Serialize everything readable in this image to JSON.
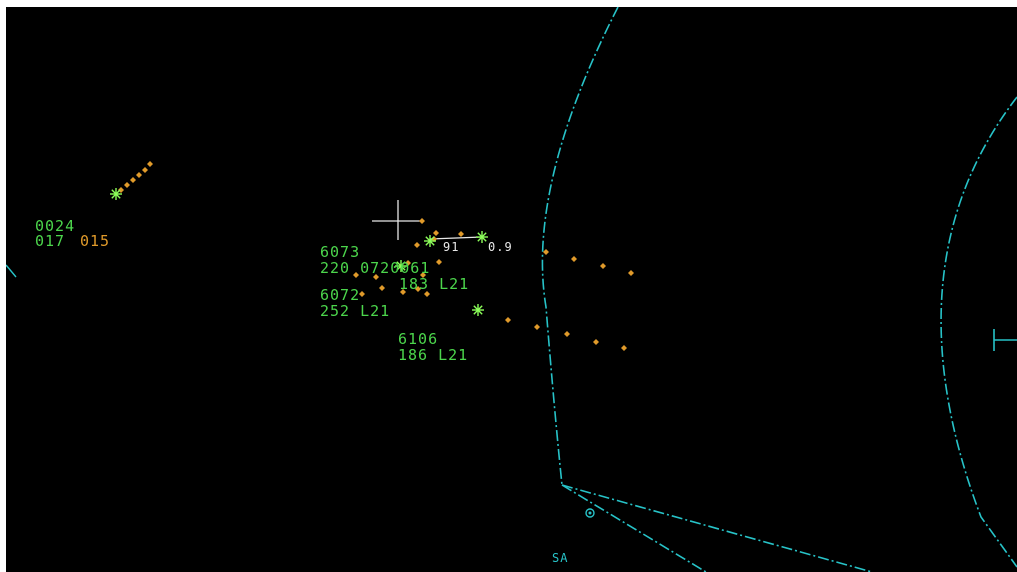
{
  "colors": {
    "background": "#000000",
    "boundary": "#27c3c8",
    "datablock": "#4cd64c",
    "altitude": "#e09a2a",
    "history": "#e09a2a",
    "cursor": "#e8e8e8",
    "leader": "#e8e8e8"
  },
  "icons": {
    "target": "asterisk-target-icon",
    "history": "diamond-history-icon",
    "cursor": "crosshair-cursor-icon",
    "fix": "circle-fix-icon"
  },
  "tracks": [
    {
      "id": "track-0024",
      "line1": "0024",
      "line2_a": "017",
      "line2_b": "015"
    },
    {
      "id": "track-6073",
      "line1": "6073",
      "line2": "220 0720061"
    },
    {
      "id": "track-6061",
      "line2": "183 L21"
    },
    {
      "id": "track-6072",
      "line1": "6072",
      "line2": "252 L21"
    },
    {
      "id": "track-6106",
      "line1": "6106",
      "line2": "186 L21"
    }
  ],
  "measurement": {
    "bearing": "91",
    "range": "0.9"
  },
  "map": {
    "fix_label": "SA"
  }
}
